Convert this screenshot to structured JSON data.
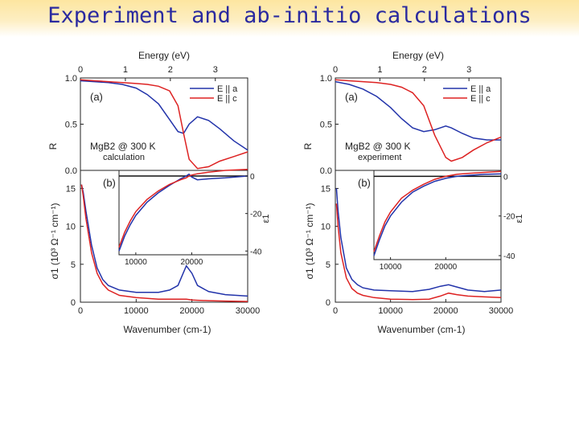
{
  "slide": {
    "title": "Experiment and ab-initio calculations"
  },
  "chart_data": [
    {
      "panel": "left",
      "type": "line",
      "top_axis_label": "Energy (eV)",
      "top_ticks": [
        "0",
        "1",
        "2",
        "3"
      ],
      "top_tick_values": [
        0,
        1,
        2,
        3
      ],
      "panel_a_label": "(a)",
      "panel_b_label": "(b)",
      "sample_label": "MgB2 @ 300 K",
      "sample_sub": "calculation",
      "legend": [
        "E || a",
        "E || c"
      ],
      "reflectivity_ylabel": "R",
      "reflectivity_ylim": [
        0,
        1
      ],
      "reflectivity_ticks": [
        "0.0",
        "0.5",
        "1.0"
      ],
      "reflectivity_tick_values": [
        0,
        0.5,
        1
      ],
      "sigma_ylabel": "σ1 (10³ Ω⁻¹ cm⁻¹)",
      "sigma_ylim": [
        0,
        15
      ],
      "sigma_ticks": [
        "0",
        "5",
        "10",
        "15"
      ],
      "sigma_tick_values": [
        0,
        5,
        10,
        15
      ],
      "xlabel": "Wavenumber (cm-1)",
      "xlim": [
        0,
        30000
      ],
      "x_ticks": [
        "0",
        "10000",
        "20000",
        "30000"
      ],
      "x_tick_values": [
        0,
        10000,
        20000,
        30000
      ],
      "inset_ylabel": "ε1",
      "inset_xlim": [
        7000,
        30000
      ],
      "inset_ylim": [
        -42,
        3
      ],
      "inset_xticks": [
        "10000",
        "20000"
      ],
      "inset_xtick_values": [
        10000,
        20000
      ],
      "inset_yticks": [
        "0",
        "-20",
        "-40"
      ],
      "inset_ytick_values": [
        0,
        -20,
        -40
      ],
      "reflectivity": {
        "x": [
          0,
          2500,
          5000,
          7500,
          10000,
          12000,
          14000,
          16000,
          17500,
          18500,
          19500,
          21000,
          23000,
          25000,
          27500,
          30000
        ],
        "series": [
          {
            "name": "E || a",
            "color": "#2233aa",
            "values": [
              0.97,
              0.96,
              0.95,
              0.93,
              0.89,
              0.82,
              0.72,
              0.55,
              0.42,
              0.4,
              0.5,
              0.58,
              0.54,
              0.45,
              0.32,
              0.22
            ]
          },
          {
            "name": "E || c",
            "color": "#dd2222",
            "values": [
              0.98,
              0.97,
              0.96,
              0.95,
              0.94,
              0.93,
              0.91,
              0.86,
              0.7,
              0.4,
              0.12,
              0.02,
              0.04,
              0.1,
              0.15,
              0.2
            ]
          }
        ]
      },
      "conductivity": {
        "x": [
          200,
          500,
          1000,
          2000,
          3000,
          4000,
          5000,
          7000,
          10000,
          14000,
          16000,
          17500,
          19000,
          20000,
          21000,
          23000,
          26000,
          30000
        ],
        "series": [
          {
            "name": "E || a",
            "color": "#2233aa",
            "values": [
              15.5,
              14.5,
              12.0,
              7.5,
              4.5,
              3.0,
              2.2,
              1.6,
              1.3,
              1.3,
              1.6,
              2.2,
              4.8,
              3.8,
              2.2,
              1.4,
              1.0,
              0.8
            ]
          },
          {
            "name": "E || c",
            "color": "#dd2222",
            "values": [
              15.5,
              14.0,
              11.0,
              6.5,
              3.8,
              2.4,
              1.6,
              0.9,
              0.6,
              0.4,
              0.4,
              0.4,
              0.4,
              0.3,
              0.25,
              0.2,
              0.15,
              0.1
            ]
          }
        ]
      },
      "dielectric": {
        "x": [
          7000,
          8000,
          9000,
          10000,
          12000,
          14000,
          16000,
          18000,
          19000,
          19500,
          20000,
          21000,
          23000,
          26000,
          30000
        ],
        "series": [
          {
            "name": "E || a",
            "color": "#2233aa",
            "values": [
              -40,
              -32,
              -26,
              -21,
              -14,
              -9,
              -5,
              -1.5,
              0,
              1,
              -0.5,
              -2,
              -1.5,
              -1,
              0
            ]
          },
          {
            "name": "E || c",
            "color": "#dd2222",
            "values": [
              -38,
              -30,
              -24,
              -19,
              -12.5,
              -8,
              -4.5,
              -2,
              -1,
              0,
              0.5,
              1.2,
              2,
              3,
              3.5
            ]
          }
        ],
        "zero_line": true
      }
    },
    {
      "panel": "right",
      "type": "line",
      "top_axis_label": "Energy (eV)",
      "top_ticks": [
        "0",
        "1",
        "2",
        "3"
      ],
      "top_tick_values": [
        0,
        1,
        2,
        3
      ],
      "panel_a_label": "(a)",
      "panel_b_label": "(b)",
      "sample_label": "MgB2 @ 300 K",
      "sample_sub": "experiment",
      "legend": [
        "E || a",
        "E || c"
      ],
      "reflectivity_ylabel": "R",
      "reflectivity_ylim": [
        0,
        1
      ],
      "reflectivity_ticks": [
        "0.0",
        "0.5",
        "1.0"
      ],
      "reflectivity_tick_values": [
        0,
        0.5,
        1
      ],
      "sigma_ylabel": "σ1 (10³ Ω⁻¹ cm⁻¹)",
      "sigma_ylim": [
        0,
        15
      ],
      "sigma_ticks": [
        "0",
        "5",
        "10",
        "15"
      ],
      "sigma_tick_values": [
        0,
        5,
        10,
        15
      ],
      "xlabel": "Wavenumber (cm-1)",
      "xlim": [
        0,
        30000
      ],
      "x_ticks": [
        "0",
        "10000",
        "20000",
        "30000"
      ],
      "x_tick_values": [
        0,
        10000,
        20000,
        30000
      ],
      "inset_ylabel": "ε1",
      "inset_xlim": [
        7000,
        30000
      ],
      "inset_ylim": [
        -42,
        3
      ],
      "inset_xticks": [
        "10000",
        "20000"
      ],
      "inset_xtick_values": [
        10000,
        20000
      ],
      "inset_yticks": [
        "0",
        "-20",
        "-40"
      ],
      "inset_ytick_values": [
        0,
        -20,
        -40
      ],
      "reflectivity": {
        "x": [
          0,
          2500,
          5000,
          7500,
          10000,
          12000,
          14000,
          16000,
          18000,
          20000,
          21000,
          23000,
          25000,
          27500,
          30000
        ],
        "series": [
          {
            "name": "E || a",
            "color": "#2233aa",
            "values": [
              0.96,
              0.93,
              0.88,
              0.8,
              0.68,
              0.56,
              0.46,
              0.42,
              0.44,
              0.48,
              0.46,
              0.4,
              0.35,
              0.33,
              0.33
            ]
          },
          {
            "name": "E || c",
            "color": "#dd2222",
            "values": [
              0.98,
              0.97,
              0.96,
              0.95,
              0.93,
              0.9,
              0.84,
              0.7,
              0.38,
              0.14,
              0.1,
              0.14,
              0.22,
              0.3,
              0.36
            ]
          }
        ]
      },
      "conductivity": {
        "x": [
          200,
          500,
          1000,
          2000,
          3000,
          4000,
          5000,
          7000,
          10000,
          14000,
          17000,
          19000,
          20500,
          22000,
          24000,
          27000,
          30000
        ],
        "series": [
          {
            "name": "E || a",
            "color": "#2233aa",
            "values": [
              15.0,
              12.0,
              8.5,
              4.5,
              3.0,
              2.3,
              1.9,
              1.6,
              1.5,
              1.4,
              1.7,
              2.1,
              2.3,
              2.0,
              1.6,
              1.4,
              1.6
            ]
          },
          {
            "name": "E || c",
            "color": "#dd2222",
            "values": [
              13.0,
              10.0,
              6.5,
              3.2,
              1.8,
              1.2,
              0.9,
              0.6,
              0.4,
              0.35,
              0.4,
              0.8,
              1.2,
              1.0,
              0.8,
              0.7,
              0.6
            ]
          }
        ]
      },
      "dielectric": {
        "x": [
          7000,
          8000,
          9000,
          10000,
          12000,
          14000,
          16000,
          18000,
          20000,
          22000,
          24000,
          27000,
          30000
        ],
        "series": [
          {
            "name": "E || a",
            "color": "#2233aa",
            "values": [
              -40,
              -32,
              -25,
              -20,
              -13,
              -8,
              -5,
              -2.5,
              -1,
              0,
              0.5,
              1,
              1.2
            ]
          },
          {
            "name": "E || c",
            "color": "#dd2222",
            "values": [
              -38,
              -30,
              -23,
              -18,
              -11,
              -7,
              -4,
              -1.5,
              0,
              1,
              1.5,
              2,
              2.5
            ]
          }
        ],
        "zero_line": true
      }
    }
  ]
}
